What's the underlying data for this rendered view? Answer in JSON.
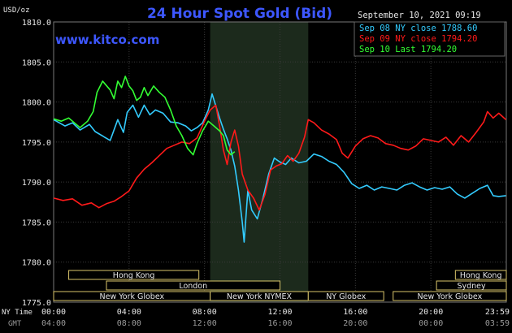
{
  "chart_data": {
    "type": "line",
    "title": "24 Hour Spot Gold (Bid)",
    "watermark": "www.kitco.com",
    "ylabel": "USD/oz",
    "datetime": "September 10, 2021 09:19",
    "ylim": [
      1775.0,
      1810.0
    ],
    "yticks": [
      "1810.0",
      "1805.0",
      "1800.0",
      "1795.0",
      "1790.0",
      "1785.0",
      "1780.0",
      "1775.0"
    ],
    "x_range_hours": [
      0,
      24
    ],
    "x_row_labels": [
      "NY Time",
      "GMT"
    ],
    "xticks_ny": [
      "00:00",
      "04:00",
      "08:00",
      "12:00",
      "16:00",
      "20:00",
      "23:59"
    ],
    "xticks_gmt": [
      "04:00",
      "08:00",
      "12:00",
      "16:00",
      "20:00",
      "00:00",
      "03:59"
    ],
    "shaded_range_hours": [
      8.3,
      13.5
    ],
    "legend": [
      {
        "label": "Sep 08 NY close 1788.60",
        "color": "#33ccff"
      },
      {
        "label": "Sep 09 NY close 1794.20",
        "color": "#ff1a1a"
      },
      {
        "label": "Sep 10 Last 1794.20",
        "color": "#33ff33"
      }
    ],
    "series": [
      {
        "name": "Sep 08 NY close 1788.60",
        "color": "#33ccff",
        "points": [
          [
            0,
            1797.8
          ],
          [
            0.6,
            1797.0
          ],
          [
            1.0,
            1797.4
          ],
          [
            1.4,
            1796.5
          ],
          [
            1.9,
            1797.2
          ],
          [
            2.2,
            1796.3
          ],
          [
            2.7,
            1795.6
          ],
          [
            3.0,
            1795.2
          ],
          [
            3.4,
            1797.8
          ],
          [
            3.7,
            1796.2
          ],
          [
            3.9,
            1798.7
          ],
          [
            4.2,
            1799.6
          ],
          [
            4.5,
            1798.1
          ],
          [
            4.8,
            1799.6
          ],
          [
            5.1,
            1798.4
          ],
          [
            5.4,
            1799.0
          ],
          [
            5.8,
            1798.6
          ],
          [
            6.2,
            1797.5
          ],
          [
            6.6,
            1797.4
          ],
          [
            7.0,
            1797.0
          ],
          [
            7.3,
            1796.4
          ],
          [
            7.6,
            1796.8
          ],
          [
            7.9,
            1797.4
          ],
          [
            8.2,
            1799.0
          ],
          [
            8.4,
            1801.0
          ],
          [
            8.6,
            1799.5
          ],
          [
            8.8,
            1798.0
          ],
          [
            9.0,
            1796.6
          ],
          [
            9.2,
            1795.4
          ],
          [
            9.4,
            1794.0
          ],
          [
            9.6,
            1792.0
          ],
          [
            9.8,
            1789.0
          ],
          [
            10.0,
            1785.0
          ],
          [
            10.1,
            1782.5
          ],
          [
            10.3,
            1789.0
          ],
          [
            10.5,
            1786.5
          ],
          [
            10.8,
            1785.4
          ],
          [
            11.1,
            1788.0
          ],
          [
            11.4,
            1791.0
          ],
          [
            11.7,
            1793.0
          ],
          [
            12.0,
            1792.5
          ],
          [
            12.3,
            1792.2
          ],
          [
            12.6,
            1793.0
          ],
          [
            13.0,
            1792.4
          ],
          [
            13.4,
            1792.6
          ],
          [
            13.8,
            1793.5
          ],
          [
            14.2,
            1793.2
          ],
          [
            14.6,
            1792.6
          ],
          [
            15.0,
            1792.2
          ],
          [
            15.4,
            1791.2
          ],
          [
            15.8,
            1789.8
          ],
          [
            16.2,
            1789.2
          ],
          [
            16.6,
            1789.6
          ],
          [
            17.0,
            1789.0
          ],
          [
            17.4,
            1789.4
          ],
          [
            17.8,
            1789.2
          ],
          [
            18.2,
            1789.0
          ],
          [
            18.6,
            1789.6
          ],
          [
            19.0,
            1789.9
          ],
          [
            19.4,
            1789.4
          ],
          [
            19.8,
            1789.0
          ],
          [
            20.2,
            1789.3
          ],
          [
            20.6,
            1789.1
          ],
          [
            21.0,
            1789.4
          ],
          [
            21.4,
            1788.5
          ],
          [
            21.8,
            1788.0
          ],
          [
            22.2,
            1788.6
          ],
          [
            22.6,
            1789.2
          ],
          [
            23.0,
            1789.6
          ],
          [
            23.3,
            1788.3
          ],
          [
            23.6,
            1788.2
          ],
          [
            23.98,
            1788.3
          ]
        ]
      },
      {
        "name": "Sep 09 NY close 1794.20",
        "color": "#ff1a1a",
        "points": [
          [
            0,
            1788.0
          ],
          [
            0.5,
            1787.7
          ],
          [
            1.0,
            1787.9
          ],
          [
            1.5,
            1787.1
          ],
          [
            2.0,
            1787.4
          ],
          [
            2.4,
            1786.8
          ],
          [
            2.8,
            1787.3
          ],
          [
            3.2,
            1787.6
          ],
          [
            3.6,
            1788.2
          ],
          [
            4.0,
            1788.9
          ],
          [
            4.4,
            1790.5
          ],
          [
            4.8,
            1791.6
          ],
          [
            5.2,
            1792.4
          ],
          [
            5.6,
            1793.3
          ],
          [
            6.0,
            1794.2
          ],
          [
            6.4,
            1794.6
          ],
          [
            6.8,
            1795.0
          ],
          [
            7.2,
            1794.8
          ],
          [
            7.6,
            1795.5
          ],
          [
            8.0,
            1797.6
          ],
          [
            8.3,
            1799.0
          ],
          [
            8.6,
            1799.6
          ],
          [
            8.8,
            1797.0
          ],
          [
            9.0,
            1794.0
          ],
          [
            9.2,
            1792.2
          ],
          [
            9.4,
            1795.0
          ],
          [
            9.6,
            1796.5
          ],
          [
            9.8,
            1794.5
          ],
          [
            10.0,
            1791.0
          ],
          [
            10.3,
            1789.0
          ],
          [
            10.6,
            1788.0
          ],
          [
            10.9,
            1786.5
          ],
          [
            11.2,
            1788.4
          ],
          [
            11.5,
            1791.5
          ],
          [
            11.8,
            1792.0
          ],
          [
            12.1,
            1792.3
          ],
          [
            12.4,
            1793.3
          ],
          [
            12.7,
            1792.6
          ],
          [
            13.0,
            1793.6
          ],
          [
            13.3,
            1795.6
          ],
          [
            13.5,
            1797.8
          ],
          [
            13.8,
            1797.4
          ],
          [
            14.2,
            1796.5
          ],
          [
            14.6,
            1796.0
          ],
          [
            15.0,
            1795.3
          ],
          [
            15.3,
            1793.6
          ],
          [
            15.6,
            1793.0
          ],
          [
            16.0,
            1794.5
          ],
          [
            16.4,
            1795.4
          ],
          [
            16.8,
            1795.8
          ],
          [
            17.2,
            1795.5
          ],
          [
            17.6,
            1794.8
          ],
          [
            18.0,
            1794.6
          ],
          [
            18.4,
            1794.2
          ],
          [
            18.8,
            1794.0
          ],
          [
            19.2,
            1794.5
          ],
          [
            19.6,
            1795.4
          ],
          [
            20.0,
            1795.2
          ],
          [
            20.4,
            1795.0
          ],
          [
            20.8,
            1795.6
          ],
          [
            21.2,
            1794.6
          ],
          [
            21.6,
            1795.8
          ],
          [
            22.0,
            1795.0
          ],
          [
            22.4,
            1796.2
          ],
          [
            22.8,
            1797.5
          ],
          [
            23.0,
            1798.8
          ],
          [
            23.3,
            1798.0
          ],
          [
            23.6,
            1798.6
          ],
          [
            23.98,
            1797.8
          ]
        ]
      },
      {
        "name": "Sep 10 Last 1794.20",
        "color": "#33ff33",
        "points": [
          [
            0,
            1797.9
          ],
          [
            0.4,
            1797.6
          ],
          [
            0.8,
            1798.0
          ],
          [
            1.1,
            1797.4
          ],
          [
            1.4,
            1796.8
          ],
          [
            1.8,
            1797.6
          ],
          [
            2.1,
            1798.8
          ],
          [
            2.3,
            1801.2
          ],
          [
            2.6,
            1802.6
          ],
          [
            3.0,
            1801.5
          ],
          [
            3.2,
            1800.4
          ],
          [
            3.4,
            1802.6
          ],
          [
            3.6,
            1801.8
          ],
          [
            3.8,
            1803.2
          ],
          [
            4.0,
            1802.0
          ],
          [
            4.2,
            1801.4
          ],
          [
            4.4,
            1800.2
          ],
          [
            4.6,
            1800.6
          ],
          [
            4.8,
            1801.8
          ],
          [
            5.0,
            1800.8
          ],
          [
            5.3,
            1802.0
          ],
          [
            5.6,
            1801.2
          ],
          [
            5.9,
            1800.6
          ],
          [
            6.2,
            1799.0
          ],
          [
            6.5,
            1797.0
          ],
          [
            6.8,
            1795.8
          ],
          [
            7.1,
            1794.2
          ],
          [
            7.4,
            1793.4
          ],
          [
            7.6,
            1794.8
          ],
          [
            7.9,
            1796.4
          ],
          [
            8.2,
            1797.6
          ],
          [
            8.5,
            1797.0
          ],
          [
            8.8,
            1796.4
          ],
          [
            9.0,
            1795.8
          ],
          [
            9.2,
            1794.0
          ],
          [
            9.4,
            1793.4
          ],
          [
            9.6,
            1793.8
          ]
        ]
      }
    ],
    "session_rows": [
      [
        {
          "label": "Hong Kong",
          "start": 0.8,
          "end": 7.7
        },
        {
          "label": "Hong Kong",
          "start": 21.3,
          "end": 24.0
        }
      ],
      [
        {
          "label": "London",
          "start": 2.8,
          "end": 12.0
        },
        {
          "label": "Sydney",
          "start": 20.3,
          "end": 24.0
        }
      ],
      [
        {
          "label": "New York Globex",
          "start": 0.0,
          "end": 8.3
        },
        {
          "label": "New York NYMEX",
          "start": 8.3,
          "end": 13.5
        },
        {
          "label": "NY Globex",
          "start": 13.5,
          "end": 17.5
        },
        {
          "label": "New York Globex",
          "start": 18.0,
          "end": 24.0
        }
      ]
    ]
  }
}
